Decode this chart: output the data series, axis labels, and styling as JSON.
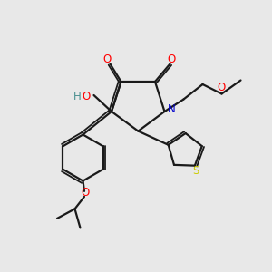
{
  "background_color": "#e8e8e8",
  "bond_color": "#1a1a1a",
  "colors": {
    "O": "#ff0000",
    "N": "#0000cc",
    "S": "#cccc00",
    "H": "#4a9090",
    "C": "#1a1a1a"
  },
  "figsize": [
    3.0,
    3.0
  ],
  "dpi": 100
}
